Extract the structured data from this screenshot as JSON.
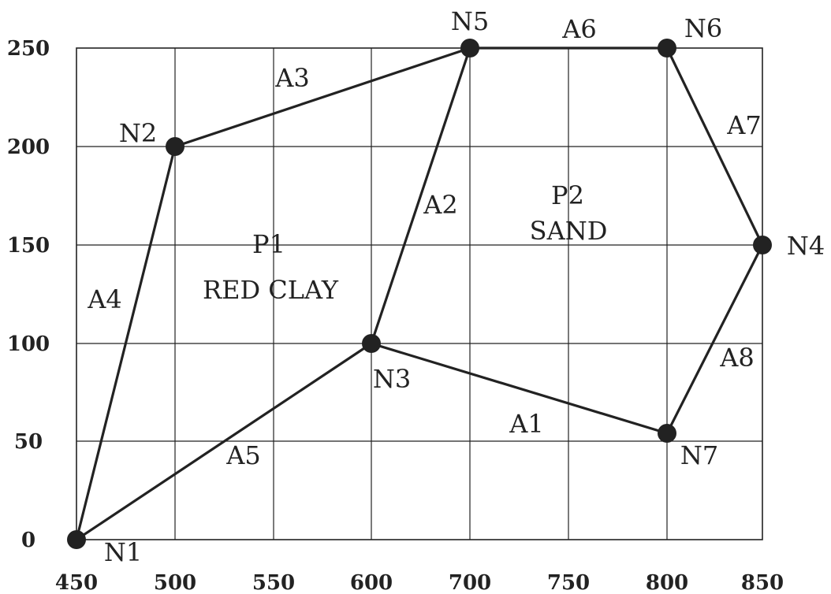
{
  "diagram": {
    "x_ticks": [
      450,
      500,
      550,
      600,
      700,
      750,
      800,
      850
    ],
    "y_ticks": [
      0,
      50,
      100,
      150,
      200,
      250
    ],
    "nodes": [
      {
        "id": "N1",
        "label": "N1"
      },
      {
        "id": "N2",
        "label": "N2"
      },
      {
        "id": "N3",
        "label": "N3"
      },
      {
        "id": "N4",
        "label": "N4"
      },
      {
        "id": "N5",
        "label": "N5"
      },
      {
        "id": "N6",
        "label": "N6"
      },
      {
        "id": "N7",
        "label": "N7"
      }
    ],
    "arcs": [
      {
        "id": "A1",
        "label": "A1",
        "from": "N3",
        "to": "N7"
      },
      {
        "id": "A2",
        "label": "A2",
        "from": "N3",
        "to": "N5"
      },
      {
        "id": "A3",
        "label": "A3",
        "from": "N2",
        "to": "N5"
      },
      {
        "id": "A4",
        "label": "A4",
        "from": "N1",
        "to": "N2"
      },
      {
        "id": "A5",
        "label": "A5",
        "from": "N1",
        "to": "N3"
      },
      {
        "id": "A6",
        "label": "A6",
        "from": "N5",
        "to": "N6"
      },
      {
        "id": "A7",
        "label": "A7",
        "from": "N6",
        "to": "N4"
      },
      {
        "id": "A8",
        "label": "A8",
        "from": "N4",
        "to": "N7"
      }
    ],
    "polygons": [
      {
        "id": "P1",
        "label": "P1",
        "name": "RED CLAY"
      },
      {
        "id": "P2",
        "label": "P2",
        "name": "SAND"
      }
    ]
  }
}
